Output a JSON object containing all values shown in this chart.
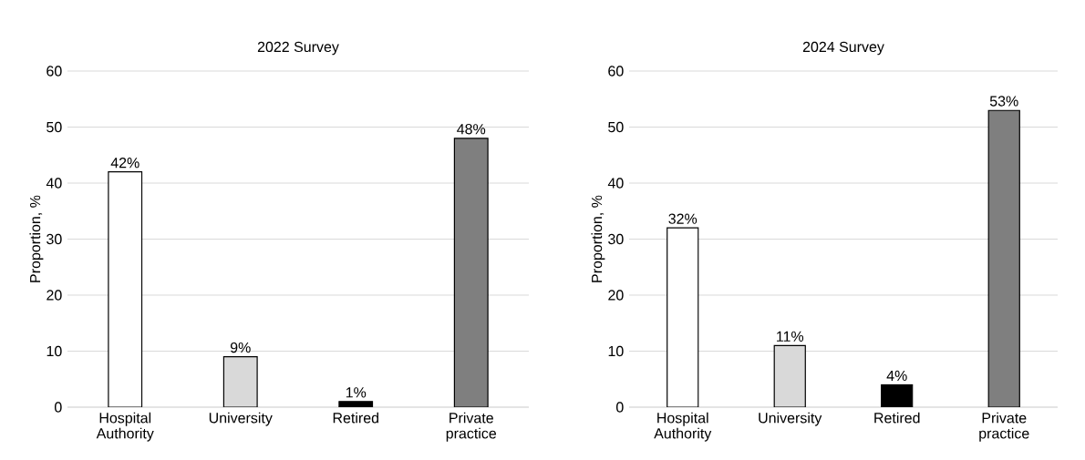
{
  "chart_data": [
    {
      "type": "bar",
      "title": "2022 Survey",
      "ylabel": "Proportion, %",
      "categories": [
        "Hospital Authority",
        "University",
        "Retired",
        "Private practice"
      ],
      "values": [
        42,
        9,
        1,
        48
      ],
      "value_labels": [
        "42%",
        "9%",
        "1%",
        "48%"
      ],
      "colors": [
        "#ffffff",
        "#d9d9d9",
        "#000000",
        "#7f7f7f"
      ],
      "ylim": [
        0,
        60
      ],
      "yticks": [
        0,
        10,
        20,
        30,
        40,
        50,
        60
      ],
      "grid": "y"
    },
    {
      "type": "bar",
      "title": "2024 Survey",
      "ylabel": "Proportion, %",
      "categories": [
        "Hospital Authority",
        "University",
        "Retired",
        "Private practice"
      ],
      "values": [
        32,
        11,
        4,
        53
      ],
      "value_labels": [
        "32%",
        "11%",
        "4%",
        "53%"
      ],
      "colors": [
        "#ffffff",
        "#d9d9d9",
        "#000000",
        "#7f7f7f"
      ],
      "ylim": [
        0,
        60
      ],
      "yticks": [
        0,
        10,
        20,
        30,
        40,
        50,
        60
      ],
      "grid": "y"
    }
  ]
}
